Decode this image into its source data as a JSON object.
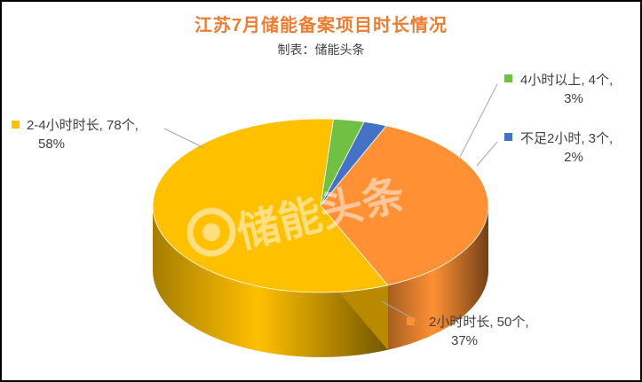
{
  "chart_data": {
    "type": "pie",
    "style": "3d",
    "title": "江苏7月储能备案项目时长情况",
    "subtitle": "制表：储能头条",
    "watermark": "储能头条",
    "slices": [
      {
        "name": "2小时时长",
        "value": 50,
        "percent": "37%",
        "color": "#FF9033",
        "label_line1": "2小时时长, 50个,",
        "label_line2": "37%"
      },
      {
        "name": "不足2小时",
        "value": 3,
        "percent": "2%",
        "color": "#4472C4",
        "label_line1": "不足2小时, 3个,",
        "label_line2": "2%"
      },
      {
        "name": "4小时以上",
        "value": 4,
        "percent": "3%",
        "color": "#70C043",
        "label_line1": "4小时以上, 4个,",
        "label_line2": "3%"
      },
      {
        "name": "2-4小时时长",
        "value": 78,
        "percent": "58%",
        "color": "#FFC000",
        "label_line1": "2-4小时时长, 78个,",
        "label_line2": "58%"
      }
    ]
  }
}
